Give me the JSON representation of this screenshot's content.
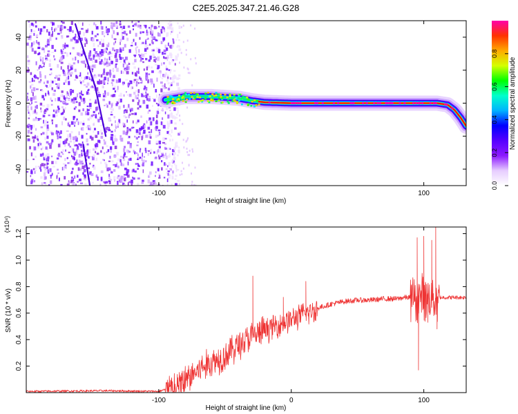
{
  "title": "C2E5.2025.347.21.46.G28",
  "chart_data": [
    {
      "type": "heatmap",
      "name": "spectrogram",
      "xlabel": "Height of straight line (km)",
      "ylabel": "Frequency (Hz)",
      "xlim": [
        -200,
        132
      ],
      "ylim": [
        -50,
        50
      ],
      "xticks": [
        -100,
        100
      ],
      "xtick_labels": [
        "-100",
        "100"
      ],
      "yticks": [
        -40,
        -20,
        0,
        20,
        40
      ],
      "ytick_labels": [
        "-40",
        "-20",
        "0",
        "20",
        "40"
      ],
      "colorbar": {
        "label": "Normalized spectral amplitude",
        "range": [
          0,
          1
        ],
        "ticks": [
          0.0,
          0.2,
          0.4,
          0.6,
          0.8
        ],
        "tick_labels": [
          "0.0",
          "0.2",
          "0.4",
          "0.6",
          "0.8"
        ],
        "colors": [
          "#ffffff",
          "#e6ccff",
          "#8c1aff",
          "#5500ff",
          "#0000ff",
          "#00b3ff",
          "#00ffcc",
          "#00ff00",
          "#d4ff00",
          "#ffaa00",
          "#ff3300",
          "#ff00aa"
        ]
      },
      "noise_region_x": [
        -200,
        -85
      ],
      "streak_lines": [
        {
          "x": [
            -163,
            -148
          ],
          "y": [
            48,
            10
          ]
        },
        {
          "x": [
            -148,
            -140
          ],
          "y": [
            10,
            -20
          ]
        },
        {
          "x": [
            -157,
            -152
          ],
          "y": [
            -25,
            -50
          ]
        }
      ],
      "ridge": {
        "x": [
          -95,
          -80,
          -60,
          -40,
          -30,
          -20,
          0,
          20,
          60,
          100,
          110,
          118,
          123,
          128,
          132
        ],
        "y": [
          2,
          4,
          4,
          3,
          1.5,
          0.5,
          0,
          0,
          0,
          0,
          0,
          -1,
          -4,
          -9,
          -14
        ]
      }
    },
    {
      "type": "line",
      "name": "snr",
      "xlabel": "Height of straight line (km)",
      "ylabel": "SNR (10 * v/v)",
      "scale_label": "(x10⁴)",
      "xlim": [
        -200,
        132
      ],
      "ylim": [
        0,
        1.25
      ],
      "xticks": [
        -100,
        0,
        100
      ],
      "xtick_labels": [
        "-100",
        "0",
        "100"
      ],
      "yticks": [
        0.2,
        0.4,
        0.6,
        0.8,
        1.0,
        1.2
      ],
      "ytick_labels": [
        "0.2",
        "0.4",
        "0.6",
        "0.8",
        "1.0",
        "1.2"
      ],
      "color": "#ee3333",
      "envelope": {
        "x": [
          -200,
          -140,
          -100,
          -90,
          -80,
          -70,
          -60,
          -50,
          -40,
          -30,
          -20,
          -10,
          0,
          10,
          20,
          30,
          40,
          50,
          60,
          70,
          80,
          85,
          90,
          95,
          100,
          105,
          110,
          115,
          120,
          132
        ],
        "y": [
          0.01,
          0.015,
          0.01,
          0.04,
          0.1,
          0.18,
          0.24,
          0.29,
          0.37,
          0.43,
          0.48,
          0.52,
          0.56,
          0.6,
          0.64,
          0.67,
          0.69,
          0.7,
          0.7,
          0.71,
          0.71,
          0.72,
          0.72,
          0.73,
          0.74,
          0.74,
          0.72,
          0.72,
          0.72,
          0.72
        ]
      },
      "spikes": [
        {
          "x": -29,
          "y": 0.88
        },
        {
          "x": -6,
          "y": 0.72
        },
        {
          "x": 11,
          "y": 0.84
        },
        {
          "x": 95,
          "y": 1.17
        },
        {
          "x": 96,
          "y": 0.17
        },
        {
          "x": 100,
          "y": 1.18
        },
        {
          "x": 103,
          "y": 0.53
        },
        {
          "x": 106,
          "y": 1.15
        },
        {
          "x": 109,
          "y": 1.25
        },
        {
          "x": 110,
          "y": 0.48
        }
      ]
    }
  ]
}
